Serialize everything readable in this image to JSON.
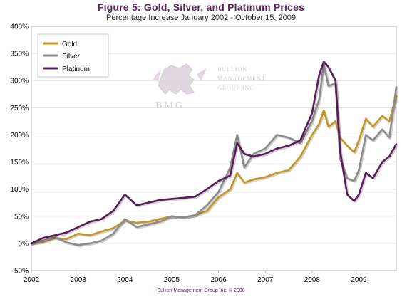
{
  "title": "Figure 5: Gold, Silver, and Platinum Prices",
  "subtitle": "Percentage Increase January 2002 - October 15, 2009",
  "footer": "Bullion Management Group Inc. © 2008",
  "watermark": {
    "name_line1": "BULLION",
    "name_line2": "MANAGEMENT",
    "name_line3": "GROUP INC.",
    "initials": "BMG"
  },
  "colors": {
    "gold": "#c8961e",
    "silver": "#8c8c8c",
    "platinum": "#5b1a5e",
    "title": "#5b2160"
  },
  "chart_data": {
    "type": "line",
    "title": "Figure 5: Gold, Silver, and Platinum Prices",
    "subtitle": "Percentage Increase January 2002 - October 15, 2009",
    "xlim": [
      2002,
      2009.8
    ],
    "ylim": [
      -50,
      400
    ],
    "x_ticks": [
      "2002",
      "2003",
      "2004",
      "2005",
      "2006",
      "2007",
      "2008",
      "2009"
    ],
    "y_ticks": [
      "-50%",
      "0%",
      "50%",
      "100%",
      "150%",
      "200%",
      "250%",
      "300%",
      "350%",
      "400%"
    ],
    "grid": "horizontal",
    "legend_position": "top-left",
    "x": [
      2002.0,
      2002.25,
      2002.5,
      2002.75,
      2003.0,
      2003.25,
      2003.5,
      2003.75,
      2004.0,
      2004.25,
      2004.5,
      2004.75,
      2005.0,
      2005.25,
      2005.5,
      2005.75,
      2006.0,
      2006.25,
      2006.4,
      2006.55,
      2006.75,
      2007.0,
      2007.25,
      2007.5,
      2007.75,
      2008.0,
      2008.15,
      2008.25,
      2008.35,
      2008.5,
      2008.6,
      2008.75,
      2008.9,
      2009.0,
      2009.15,
      2009.3,
      2009.5,
      2009.65,
      2009.8
    ],
    "series": [
      {
        "name": "Gold",
        "values": [
          0,
          3,
          10,
          8,
          18,
          15,
          22,
          28,
          42,
          38,
          40,
          45,
          50,
          48,
          52,
          60,
          85,
          100,
          130,
          112,
          118,
          122,
          130,
          135,
          160,
          200,
          220,
          245,
          215,
          225,
          195,
          180,
          168,
          190,
          230,
          215,
          235,
          225,
          272
        ]
      },
      {
        "name": "Silver",
        "values": [
          0,
          5,
          12,
          2,
          -3,
          0,
          5,
          18,
          45,
          30,
          35,
          40,
          50,
          48,
          52,
          70,
          95,
          140,
          200,
          140,
          165,
          175,
          200,
          195,
          185,
          225,
          265,
          330,
          290,
          295,
          155,
          120,
          115,
          135,
          200,
          190,
          210,
          195,
          288
        ]
      },
      {
        "name": "Platinum",
        "values": [
          0,
          10,
          15,
          20,
          30,
          40,
          45,
          60,
          90,
          70,
          75,
          80,
          82,
          84,
          86,
          100,
          115,
          125,
          185,
          165,
          160,
          165,
          175,
          180,
          190,
          240,
          310,
          335,
          325,
          300,
          170,
          90,
          78,
          90,
          130,
          120,
          150,
          160,
          183
        ]
      }
    ]
  }
}
